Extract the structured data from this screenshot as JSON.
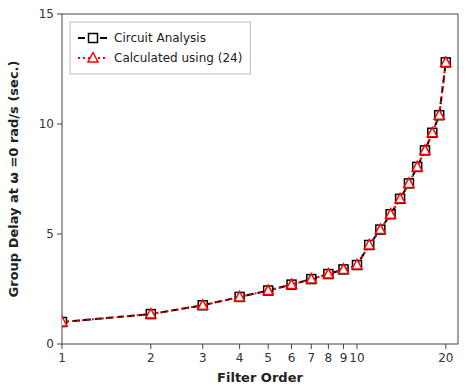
{
  "chart_data": {
    "type": "line",
    "xlabel": "Filter Order",
    "ylabel": "Group Delay at ω =0 rad/s (sec.)",
    "x": [
      1,
      2,
      3,
      4,
      5,
      6,
      7,
      8,
      9,
      10,
      11,
      12,
      13,
      14,
      15,
      16,
      17,
      18,
      19,
      20
    ],
    "series": [
      {
        "name": "Circuit Analysis",
        "color": "#000000",
        "marker": "square",
        "line_style": "dashed",
        "values": [
          1.0,
          1.36,
          1.76,
          2.14,
          2.43,
          2.7,
          2.95,
          3.18,
          3.39,
          3.59,
          4.5,
          5.2,
          5.9,
          6.6,
          7.3,
          8.05,
          8.8,
          9.6,
          10.4,
          12.8
        ]
      },
      {
        "name": "Calculated using (24)",
        "color": "#ff0000",
        "marker": "triangle",
        "line_style": "dotted",
        "values": [
          1.0,
          1.36,
          1.76,
          2.14,
          2.43,
          2.7,
          2.95,
          3.18,
          3.39,
          3.59,
          4.5,
          5.2,
          5.9,
          6.6,
          7.3,
          8.05,
          8.8,
          9.6,
          10.4,
          12.8
        ]
      }
    ],
    "log": "x",
    "xlim": [
      1,
      22
    ],
    "ylim": [
      0,
      15
    ],
    "xticks": [
      1,
      2,
      3,
      4,
      5,
      6,
      7,
      8,
      9,
      10,
      20
    ],
    "yticks": [
      0,
      5,
      10,
      15
    ],
    "legend": "upper left",
    "grid": false
  }
}
